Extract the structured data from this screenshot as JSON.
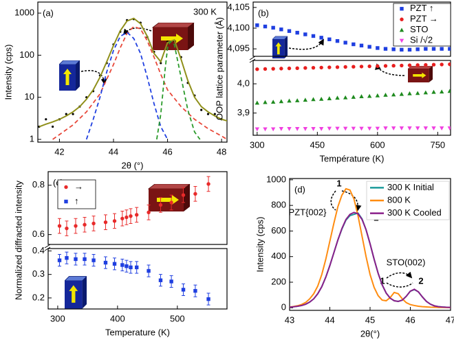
{
  "chart_data": [
    {
      "type": "line",
      "title": "(a)",
      "annotations": [
        "300 K"
      ],
      "xlabel": "2θ (°)",
      "ylabel": "Intensity (cps)",
      "yscale": "log",
      "xlim": [
        41.2,
        48.2
      ],
      "ylim": [
        0.86,
        1830
      ],
      "xticks": [
        42,
        44,
        46,
        48
      ],
      "yticks": [
        1,
        10,
        100,
        1000
      ],
      "series": [
        {
          "style": "dots",
          "color": "#000000",
          "x": [
            41.25,
            41.5,
            41.75,
            42,
            42.25,
            42.5,
            42.75,
            43,
            43.25,
            43.5,
            43.75,
            44,
            44.25,
            44.5,
            44.75,
            45,
            45.25,
            45.5,
            45.75,
            46,
            46.25,
            46.5,
            46.75,
            47,
            47.25,
            47.5,
            47.75,
            48,
            48.25
          ],
          "values": [
            2,
            3,
            2,
            3,
            4,
            4,
            6,
            10,
            14,
            33,
            65,
            180,
            360,
            680,
            720,
            590,
            270,
            120,
            65,
            210,
            220,
            90,
            22,
            11,
            5,
            4,
            4,
            3,
            3
          ]
        },
        {
          "style": "line",
          "color": "#8f8f1a",
          "x": [
            41.25,
            41.5,
            41.75,
            42,
            42.25,
            42.5,
            42.75,
            43,
            43.25,
            43.5,
            43.75,
            44,
            44.25,
            44.5,
            44.75,
            45,
            45.25,
            45.5,
            45.75,
            46,
            46.25,
            46.5,
            46.75,
            47,
            47.25,
            47.5,
            47.75,
            48,
            48.25
          ],
          "values": [
            2.0,
            2.3,
            2.6,
            3.0,
            3.6,
            4.5,
            6,
            9,
            15,
            30,
            70,
            170,
            380,
            650,
            750,
            560,
            280,
            110,
            70,
            200,
            230,
            80,
            25,
            10,
            6,
            4.5,
            3.6,
            3.0,
            2.7
          ]
        },
        {
          "style": "dashed",
          "color": "#e8483a",
          "x": [
            41.75,
            42,
            42.5,
            43,
            43.5,
            44,
            44.25,
            44.5,
            44.75,
            45,
            45.25,
            45.5,
            45.75,
            46,
            46.5,
            47,
            47.5,
            48,
            48.2
          ],
          "values": [
            1,
            1.3,
            2.2,
            4.5,
            12,
            60,
            150,
            330,
            480,
            420,
            220,
            90,
            35,
            15,
            6,
            3,
            1.8,
            1.2,
            1
          ]
        },
        {
          "style": "dashed",
          "color": "#1f3fe0",
          "x": [
            43,
            43.25,
            43.5,
            43.75,
            44,
            44.25,
            44.5,
            44.75,
            45,
            45.25,
            45.5,
            45.75,
            46
          ],
          "values": [
            1,
            3,
            10,
            40,
            130,
            280,
            350,
            250,
            110,
            30,
            7,
            2,
            1
          ]
        },
        {
          "style": "dashed",
          "color": "#2a9a2a",
          "x": [
            45.6,
            45.75,
            45.9,
            46,
            46.1,
            46.25,
            46.5,
            46.75,
            47,
            47.2
          ],
          "values": [
            1,
            4,
            40,
            150,
            210,
            180,
            30,
            5,
            1.5,
            1
          ]
        }
      ]
    },
    {
      "type": "scatter",
      "title": "(b)",
      "xlabel": "Température (K)",
      "ylabel": "OOP lattice parameter (Å)",
      "legend": "upper right",
      "xlim": [
        290,
        782
      ],
      "xticks": [
        300,
        450,
        600,
        750
      ],
      "segments": [
        {
          "ylim": [
            4.0932,
            4.1063
          ],
          "yticks": [
            {
              "value": 4.095,
              "label": "4,095"
            },
            {
              "value": 4.1,
              "label": "4,100"
            },
            {
              "value": 4.105,
              "label": "4,105"
            }
          ]
        },
        {
          "ylim": [
            3.824,
            4.08
          ],
          "yticks": [
            {
              "value": 3.9,
              "label": "3,9"
            },
            {
              "value": 4.0,
              "label": "4,0"
            }
          ]
        }
      ],
      "x": [
        300,
        320,
        340,
        360,
        380,
        400,
        420,
        440,
        460,
        480,
        500,
        520,
        540,
        560,
        580,
        600,
        620,
        640,
        660,
        680,
        700,
        720,
        740,
        760,
        780
      ],
      "series": [
        {
          "name": "PZT ↑",
          "color": "#1f3fe0",
          "marker": "square",
          "segment": 0,
          "values": [
            4.1007,
            4.1004,
            4.1001,
            4.0997,
            4.0993,
            4.0989,
            4.0985,
            4.0981,
            4.0977,
            4.0973,
            4.0969,
            4.0965,
            4.0961,
            4.0958,
            4.0955,
            4.0952,
            4.095,
            4.0949,
            4.0948,
            4.0948,
            4.0949,
            4.095,
            4.095,
            4.095,
            4.095
          ]
        },
        {
          "name": "PZT →",
          "color": "#e81e1e",
          "marker": "circle",
          "segment": 1,
          "values": [
            4.05,
            4.0507,
            4.0514,
            4.0521,
            4.0528,
            4.0535,
            4.0542,
            4.0549,
            4.0556,
            4.0563,
            4.057,
            4.0577,
            4.0584,
            4.0591,
            4.0598,
            4.0605,
            4.0612,
            4.0619,
            4.0626,
            4.0633,
            4.064,
            4.0647,
            4.0654,
            4.0661,
            4.0668
          ]
        },
        {
          "name": "STO",
          "color": "#1e8a1e",
          "marker": "triangle-up",
          "segment": 1,
          "values": [
            3.935,
            3.937,
            3.938,
            3.94,
            3.942,
            3.943,
            3.945,
            3.947,
            3.948,
            3.95,
            3.952,
            3.953,
            3.955,
            3.957,
            3.958,
            3.96,
            3.962,
            3.963,
            3.965,
            3.967,
            3.968,
            3.97,
            3.972,
            3.973,
            3.975
          ]
        },
        {
          "name": "Si /√2",
          "color": "#f040e0",
          "marker": "triangle-down",
          "segment": 1,
          "values": [
            3.845,
            3.845,
            3.845,
            3.846,
            3.846,
            3.846,
            3.846,
            3.846,
            3.846,
            3.847,
            3.847,
            3.847,
            3.847,
            3.847,
            3.847,
            3.847,
            3.848,
            3.848,
            3.848,
            3.848,
            3.848,
            3.848,
            3.848,
            3.848,
            3.848
          ]
        }
      ]
    },
    {
      "type": "scatter",
      "title": "(c)",
      "xlabel": "Temperature (K)",
      "ylabel": "Normalized diffracted intensity",
      "legend": "upper left",
      "xlim": [
        284,
        583
      ],
      "xticks": [
        300,
        400,
        500
      ],
      "segments": [
        {
          "ylim": [
            0.56,
            0.855
          ],
          "yticks": [
            0.6,
            0.8
          ]
        },
        {
          "ylim": [
            0.153,
            0.41
          ],
          "yticks": [
            0.2,
            0.3,
            0.4
          ]
        }
      ],
      "x": [
        303,
        315,
        330,
        345,
        360,
        380,
        395,
        408,
        415,
        422,
        432,
        452,
        472,
        490,
        510,
        530,
        552
      ],
      "series": [
        {
          "name": "→",
          "color": "#e82a2a",
          "marker": "circle",
          "segment": 0,
          "values": [
            0.635,
            0.625,
            0.635,
            0.64,
            0.645,
            0.65,
            0.655,
            0.665,
            0.67,
            0.675,
            0.68,
            0.69,
            0.72,
            0.73,
            0.76,
            0.765,
            0.805
          ],
          "errors": [
            0.03,
            0.03,
            0.03,
            0.03,
            0.03,
            0.03,
            0.03,
            0.03,
            0.03,
            0.03,
            0.03,
            0.03,
            0.03,
            0.03,
            0.03,
            0.03,
            0.03
          ]
        },
        {
          "name": "↑",
          "color": "#1f3fe0",
          "marker": "square",
          "segment": 1,
          "values": [
            0.36,
            0.37,
            0.365,
            0.365,
            0.36,
            0.35,
            0.345,
            0.34,
            0.335,
            0.33,
            0.33,
            0.315,
            0.275,
            0.27,
            0.235,
            0.23,
            0.195
          ],
          "errors": [
            0.025,
            0.025,
            0.025,
            0.025,
            0.025,
            0.025,
            0.025,
            0.025,
            0.025,
            0.025,
            0.025,
            0.025,
            0.025,
            0.025,
            0.025,
            0.025,
            0.025
          ]
        }
      ]
    },
    {
      "type": "line",
      "title": "(d)",
      "annotations": [
        "PZT{002}",
        "STO(002)",
        "1",
        "2",
        "1",
        "2"
      ],
      "xlabel": "2θ(°)",
      "ylabel": "Intensity (cps)",
      "legend": "upper right",
      "xlim": [
        43,
        47
      ],
      "ylim": [
        -20,
        1010
      ],
      "xticks": [
        43,
        44,
        45,
        46,
        47
      ],
      "yticks": [
        0,
        200,
        400,
        600,
        800,
        1000
      ],
      "x": [
        43,
        43.1,
        43.2,
        43.3,
        43.4,
        43.5,
        43.6,
        43.7,
        43.8,
        43.9,
        44,
        44.1,
        44.2,
        44.3,
        44.4,
        44.5,
        44.6,
        44.7,
        44.8,
        44.9,
        45,
        45.1,
        45.2,
        45.3,
        45.4,
        45.5,
        45.6,
        45.7,
        45.8,
        45.9,
        46,
        46.1,
        46.2,
        46.3,
        46.4,
        46.5,
        46.6,
        46.7,
        46.8,
        46.9,
        47
      ],
      "series": [
        {
          "name": "300 K Initial",
          "color": "#1a9a9a",
          "style": "line",
          "values": [
            5,
            8,
            12,
            18,
            28,
            45,
            70,
            110,
            165,
            240,
            330,
            430,
            530,
            615,
            685,
            720,
            730,
            740,
            695,
            610,
            500,
            380,
            270,
            180,
            115,
            75,
            55,
            50,
            60,
            90,
            130,
            142,
            125,
            85,
            50,
            28,
            15,
            9,
            6,
            4,
            3
          ]
        },
        {
          "name": "800 K",
          "color": "#ff8c10",
          "style": "line",
          "values": [
            6,
            10,
            16,
            26,
            42,
            70,
            110,
            170,
            260,
            380,
            520,
            660,
            790,
            880,
            930,
            920,
            850,
            720,
            560,
            400,
            260,
            160,
            95,
            60,
            55,
            80,
            120,
            110,
            70,
            40,
            25,
            18,
            12,
            9,
            7,
            5,
            4,
            3,
            3,
            2,
            2
          ]
        },
        {
          "name": "300 K Cooled",
          "color": "#8a1f8a",
          "style": "line",
          "values": [
            5,
            8,
            12,
            18,
            28,
            45,
            70,
            110,
            165,
            240,
            330,
            430,
            530,
            620,
            690,
            730,
            745,
            735,
            690,
            610,
            500,
            380,
            270,
            180,
            115,
            75,
            55,
            50,
            60,
            90,
            130,
            145,
            125,
            85,
            50,
            28,
            15,
            9,
            6,
            4,
            3
          ]
        }
      ]
    }
  ]
}
